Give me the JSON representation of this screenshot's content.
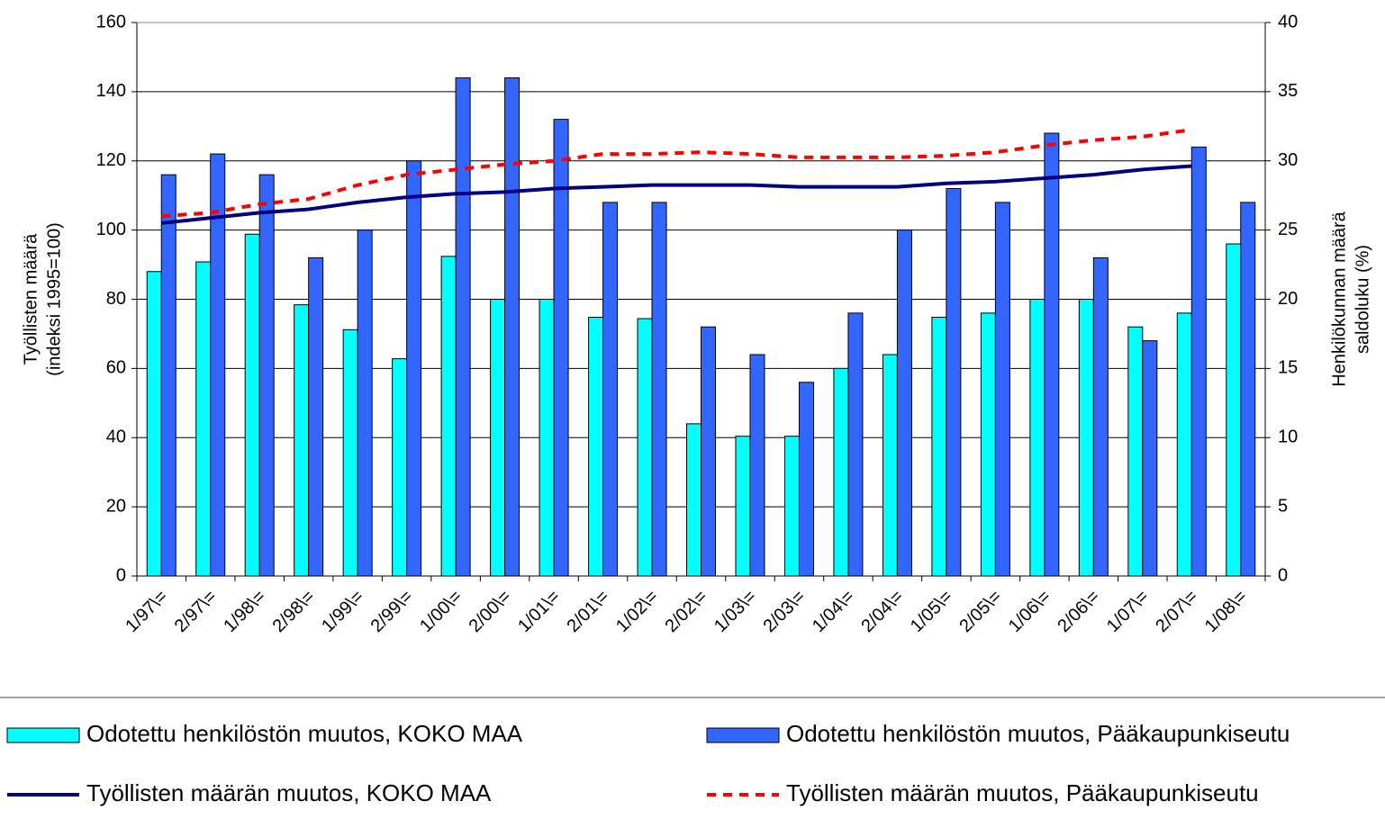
{
  "chart_data": {
    "type": "bar",
    "ylabel": [
      "Työllisten määrä",
      "(indeksi 1995=100)"
    ],
    "y2label": [
      "Henkilökunnan määrä",
      "saldoluku (%)"
    ],
    "categories": [
      "1/97\\=",
      "2/97\\=",
      "1/98\\=",
      "2/98\\=",
      "1/99\\=",
      "2/99\\=",
      "1/00\\=",
      "2/00\\=",
      "1/01\\=",
      "2/01\\=",
      "1/02\\=",
      "2/02\\=",
      "1/03\\=",
      "2/03\\=",
      "1/04\\=",
      "2/04\\=",
      "1/05\\=",
      "2/05\\=",
      "1/06\\=",
      "2/06\\=",
      "1/07\\=",
      "2/07\\=",
      "1/08\\="
    ],
    "ylim": [
      0,
      160
    ],
    "yticks": [
      0,
      20,
      40,
      60,
      80,
      100,
      120,
      140,
      160
    ],
    "y2lim": [
      0,
      40
    ],
    "y2ticks": [
      0,
      5,
      10,
      15,
      20,
      25,
      30,
      35,
      40
    ],
    "grid": true,
    "series": [
      {
        "name": "Odotettu henkilöstön muutos, KOKO MAA",
        "type": "bar",
        "axis": "y2",
        "color": "#00ffff",
        "values": [
          22,
          22.7,
          24.7,
          19.6,
          17.8,
          15.7,
          23.1,
          20,
          20,
          18.7,
          18.6,
          11,
          10.1,
          10.1,
          15,
          16,
          18.7,
          19,
          20,
          20,
          18,
          19,
          24
        ]
      },
      {
        "name": "Odotettu henkilöstön muutos, Pääkaupunkiseutu",
        "type": "bar",
        "axis": "y2",
        "color": "#3366ff",
        "values": [
          29,
          30.5,
          29,
          23,
          25,
          30,
          36,
          36,
          33,
          27,
          27,
          18,
          16,
          14,
          19,
          25,
          28,
          27,
          32,
          23,
          17,
          31,
          27
        ]
      },
      {
        "name": "Työllisten määrän muutos, KOKO MAA",
        "type": "line",
        "color": "#000080",
        "values": [
          102,
          103.5,
          105,
          106,
          108,
          109.5,
          110.5,
          111,
          112,
          112.5,
          113,
          113,
          113,
          112.5,
          112.5,
          112.5,
          113.5,
          114,
          115,
          116,
          117.5,
          118.5,
          null
        ]
      },
      {
        "name": "Työllisten määrän muutos, Pääkaupunkiseutu",
        "type": "line",
        "dashed": true,
        "color": "#ff0000",
        "values": [
          104,
          105,
          107.5,
          109,
          113,
          116,
          117.5,
          119,
          120,
          122,
          122,
          122.5,
          122,
          121,
          121,
          121,
          121.5,
          122.5,
          124.5,
          126,
          127,
          129,
          null
        ]
      }
    ]
  }
}
